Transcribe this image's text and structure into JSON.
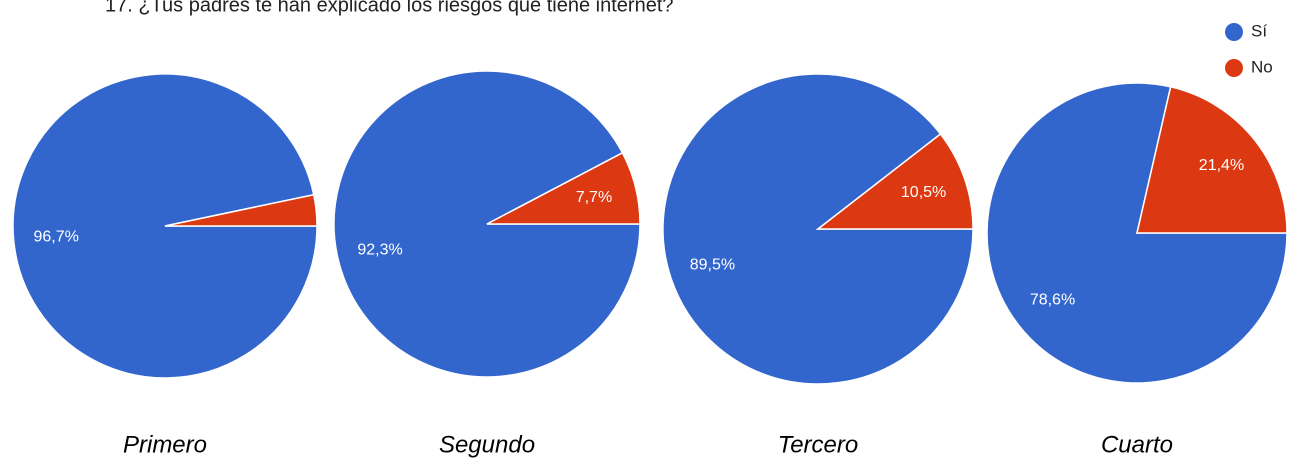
{
  "title": "17. ¿Tus padres te han explicado los riesgos que tiene internet?",
  "chart_data": [
    {
      "type": "pie",
      "title": "Primero",
      "categories": [
        "Sí",
        "No"
      ],
      "values": [
        96.7,
        3.3
      ],
      "value_labels": [
        "96,7%",
        null
      ],
      "colors": [
        "#3366cc",
        "#dc3912"
      ]
    },
    {
      "type": "pie",
      "title": "Segundo",
      "categories": [
        "Sí",
        "No"
      ],
      "values": [
        92.3,
        7.7
      ],
      "value_labels": [
        "92,3%",
        "7,7%"
      ],
      "colors": [
        "#3366cc",
        "#dc3912"
      ]
    },
    {
      "type": "pie",
      "title": "Tercero",
      "categories": [
        "Sí",
        "No"
      ],
      "values": [
        89.5,
        10.5
      ],
      "value_labels": [
        "89,5%",
        "10,5%"
      ],
      "colors": [
        "#3366cc",
        "#dc3912"
      ]
    },
    {
      "type": "pie",
      "title": "Cuarto",
      "categories": [
        "Sí",
        "No"
      ],
      "values": [
        78.6,
        21.4
      ],
      "value_labels": [
        "78,6%",
        "21,4%"
      ],
      "colors": [
        "#3366cc",
        "#dc3912"
      ]
    }
  ]
}
